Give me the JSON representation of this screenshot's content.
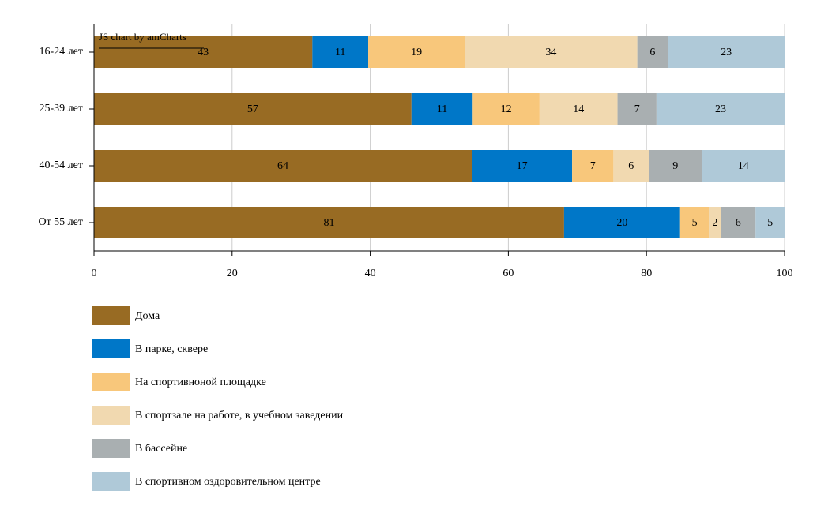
{
  "chart_data": {
    "type": "bar",
    "orientation": "horizontal",
    "stack": "100%",
    "credit": "JS chart by amCharts",
    "categories": [
      "16-24 лет",
      "25-39 лет",
      "40-54 лет",
      "От 55 лет"
    ],
    "series": [
      {
        "name": "Дома",
        "color": "#986b23",
        "values": [
          43,
          57,
          64,
          81
        ]
      },
      {
        "name": "В парке, сквере",
        "color": "#0077c8",
        "values": [
          11,
          11,
          17,
          20
        ]
      },
      {
        "name": "На спортивноной площадке",
        "color": "#f8c77b",
        "values": [
          19,
          12,
          7,
          5
        ]
      },
      {
        "name": "В спортзале на работе, в учебном заведении",
        "color": "#f1d9b0",
        "values": [
          34,
          14,
          6,
          2
        ]
      },
      {
        "name": "В бассейне",
        "color": "#a9afb1",
        "values": [
          6,
          7,
          9,
          6
        ]
      },
      {
        "name": "В спортивном оздоровительном центре",
        "color": "#afc9d8",
        "values": [
          23,
          23,
          14,
          5
        ]
      }
    ],
    "xlim": [
      0,
      100
    ],
    "xticks": [
      0,
      20,
      40,
      60,
      80,
      100
    ],
    "grid": true
  }
}
